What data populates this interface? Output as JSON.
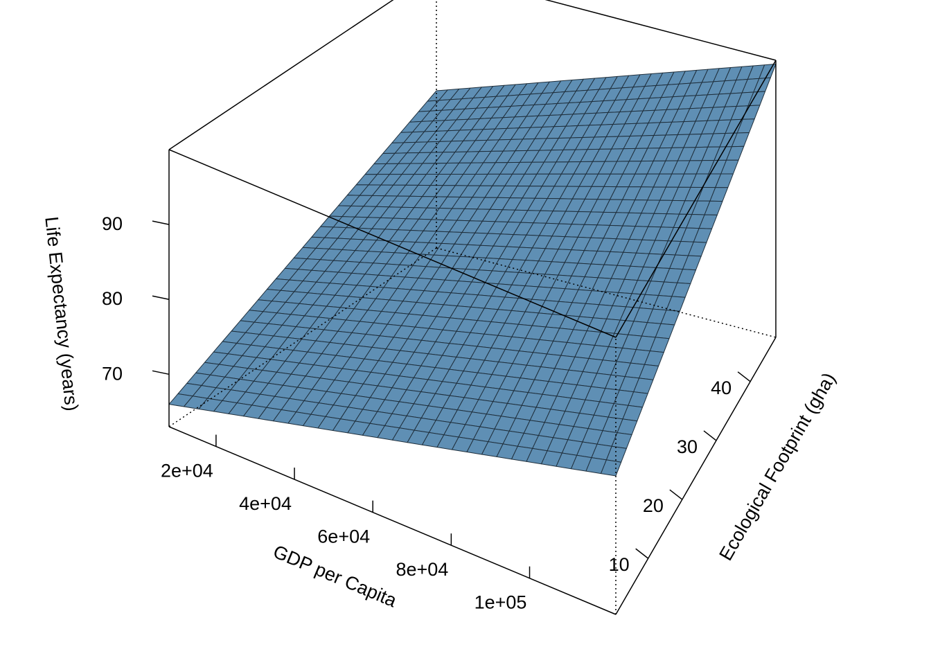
{
  "chart_data": {
    "type": "surface",
    "surface_color": "#5f8fb4",
    "grid": false,
    "title": "",
    "x_axis": {
      "label": "GDP per Capita",
      "range": [
        8000,
        122000
      ],
      "ticks": [
        20000,
        40000,
        60000,
        80000,
        100000
      ],
      "tick_labels": [
        "2e+04",
        "4e+04",
        "6e+04",
        "8e+04",
        "1e+05"
      ]
    },
    "y_axis": {
      "label": "Ecological Footprint (gha)",
      "range": [
        0.5,
        47.5
      ],
      "ticks": [
        10,
        20,
        30,
        40
      ],
      "tick_labels": [
        "10",
        "20",
        "30",
        "40"
      ]
    },
    "z_axis": {
      "label": "Life Expectancy (years)",
      "range": [
        63,
        100
      ],
      "ticks": [
        70,
        80,
        90
      ],
      "tick_labels": [
        "70",
        "80",
        "90"
      ]
    },
    "surface": {
      "x_min": 8000,
      "x_max": 122000,
      "y_min": 0.5,
      "y_max": 47.5,
      "corners": {
        "xmin_ymin": 66,
        "xmax_ymin": 81.5,
        "xmin_ymax": 84,
        "xmax_ymax": 99.5
      },
      "grid_n": 30
    }
  }
}
